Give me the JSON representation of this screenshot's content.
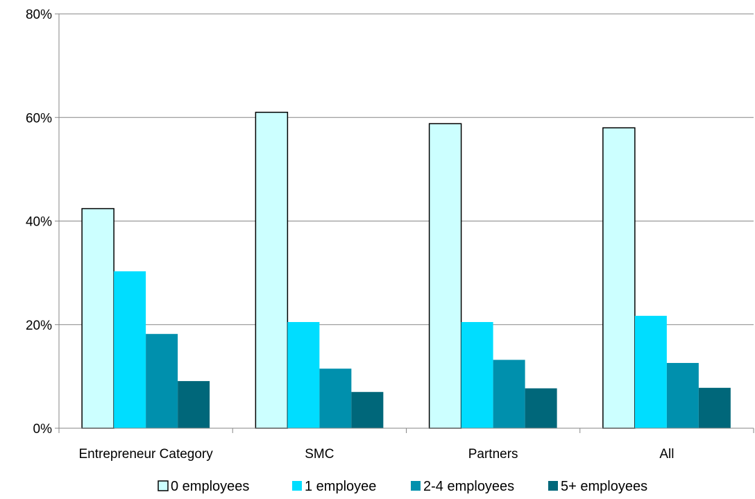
{
  "chart_data": {
    "type": "bar",
    "categories": [
      "Entrepreneur Category",
      "SMC",
      "Partners",
      "All"
    ],
    "series": [
      {
        "name": "0 employees",
        "values": [
          42.4,
          61.0,
          58.8,
          58.0
        ],
        "color": "#ccffff",
        "stroke": "#000000"
      },
      {
        "name": "1 employee",
        "values": [
          30.3,
          20.5,
          20.5,
          21.7
        ],
        "color": "#00ddff",
        "stroke": "none"
      },
      {
        "name": "2-4 employees",
        "values": [
          18.2,
          11.5,
          13.2,
          12.6
        ],
        "color": "#0090ad",
        "stroke": "none"
      },
      {
        "name": "5+ employees",
        "values": [
          9.1,
          7.0,
          7.7,
          7.8
        ],
        "color": "#00677a",
        "stroke": "none"
      }
    ],
    "y_ticks": [
      "0%",
      "20%",
      "40%",
      "60%",
      "80%"
    ],
    "ylim": [
      0,
      80
    ],
    "grid": true,
    "legend": "bottom"
  }
}
